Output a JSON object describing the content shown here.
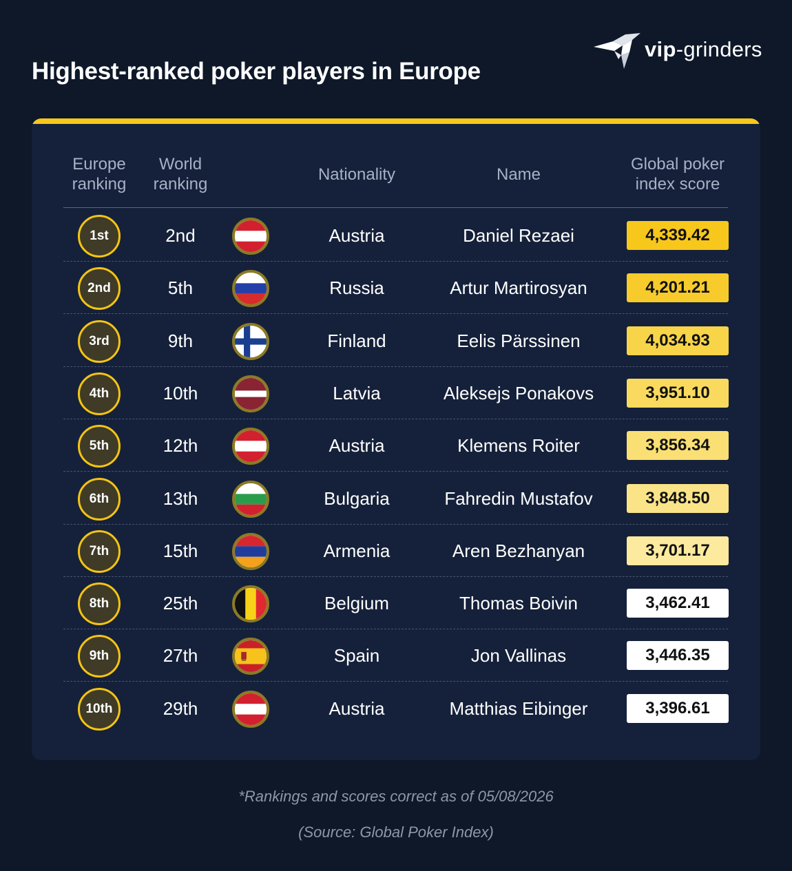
{
  "title": "Highest-ranked poker players in Europe",
  "logo": {
    "vip": "vip",
    "rest": "-grinders"
  },
  "headers": {
    "europe_ranking": [
      "Europe",
      "ranking"
    ],
    "world_ranking": [
      "World",
      "ranking"
    ],
    "nationality": "Nationality",
    "name": "Name",
    "score": [
      "Global poker",
      "index score"
    ]
  },
  "colors": {
    "background": "#0e1829",
    "card": "#15213a",
    "accent": "#f7c71c"
  },
  "chart_data": {
    "type": "table",
    "columns": [
      "Europe ranking",
      "World ranking",
      "Nationality",
      "Name",
      "Global poker index score"
    ],
    "rows": [
      {
        "europe_rank": "1st",
        "world_rank": "2nd",
        "country": "Austria",
        "flag": "austria-flag",
        "name": "Daniel Rezaei",
        "score_label": "4,339.42",
        "score": 4339.42,
        "score_color": "#f7c71c"
      },
      {
        "europe_rank": "2nd",
        "world_rank": "5th",
        "country": "Russia",
        "flag": "russia-flag",
        "name": "Artur Martirosyan",
        "score_label": "4,201.21",
        "score": 4201.21,
        "score_color": "#f7cb2b"
      },
      {
        "europe_rank": "3rd",
        "world_rank": "9th",
        "country": "Finland",
        "flag": "finland-flag",
        "name": "Eelis Pärssinen",
        "score_label": "4,034.93",
        "score": 4034.93,
        "score_color": "#f8d448"
      },
      {
        "europe_rank": "4th",
        "world_rank": "10th",
        "country": "Latvia",
        "flag": "latvia-flag",
        "name": "Aleksejs Ponakovs",
        "score_label": "3,951.10",
        "score": 3951.1,
        "score_color": "#f9da5f"
      },
      {
        "europe_rank": "5th",
        "world_rank": "12th",
        "country": "Austria",
        "flag": "austria-flag",
        "name": "Klemens Roiter",
        "score_label": "3,856.34",
        "score": 3856.34,
        "score_color": "#fadf74"
      },
      {
        "europe_rank": "6th",
        "world_rank": "13th",
        "country": "Bulgaria",
        "flag": "bulgaria-flag",
        "name": "Fahredin Mustafov",
        "score_label": "3,848.50",
        "score": 3848.5,
        "score_color": "#fbe488"
      },
      {
        "europe_rank": "7th",
        "world_rank": "15th",
        "country": "Armenia",
        "flag": "armenia-flag",
        "name": "Aren Bezhanyan",
        "score_label": "3,701.17",
        "score": 3701.17,
        "score_color": "#fcea9f"
      },
      {
        "europe_rank": "8th",
        "world_rank": "25th",
        "country": "Belgium",
        "flag": "belgium-flag",
        "name": "Thomas Boivin",
        "score_label": "3,462.41",
        "score": 3462.41,
        "score_color": "#ffffff"
      },
      {
        "europe_rank": "9th",
        "world_rank": "27th",
        "country": "Spain",
        "flag": "spain-flag",
        "name": "Jon Vallinas",
        "score_label": "3,446.35",
        "score": 3446.35,
        "score_color": "#ffffff"
      },
      {
        "europe_rank": "10th",
        "world_rank": "29th",
        "country": "Austria",
        "flag": "austria-flag",
        "name": "Matthias Eibinger",
        "score_label": "3,396.61",
        "score": 3396.61,
        "score_color": "#ffffff"
      }
    ]
  },
  "footnotes": {
    "date_note": "*Rankings and scores correct as of 05/08/2026",
    "source": "(Source: Global Poker Index)"
  }
}
